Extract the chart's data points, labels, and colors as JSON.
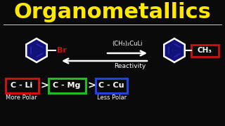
{
  "title": "Organometallics",
  "title_color": "#FFE800",
  "title_fontsize": 22,
  "background_color": "#0a0a0a",
  "separator_color": "#cccccc",
  "benzene_fill": "#12127a",
  "benzene_stroke": "#ffffff",
  "benzene_inner": "#2222aa",
  "br_color": "#cc1111",
  "ch3_box_color": "#cc1111",
  "reagent_text": "(CH₃)₂CuLi",
  "reagent_color": "#ffffff",
  "reactivity_text": "Reactivity",
  "reactivity_color": "#ffffff",
  "cli_text": "C - Li",
  "cmg_text": "C - Mg",
  "ccu_text": "C - Cu",
  "cli_box_color": "#cc1111",
  "cmg_box_color": "#22bb22",
  "ccu_box_color": "#2244dd",
  "label_color": "#ffffff",
  "more_polar": "More Polar",
  "less_polar": "Less Polar",
  "bond_color": "#ffffff",
  "arrow_color": "#ffffff"
}
